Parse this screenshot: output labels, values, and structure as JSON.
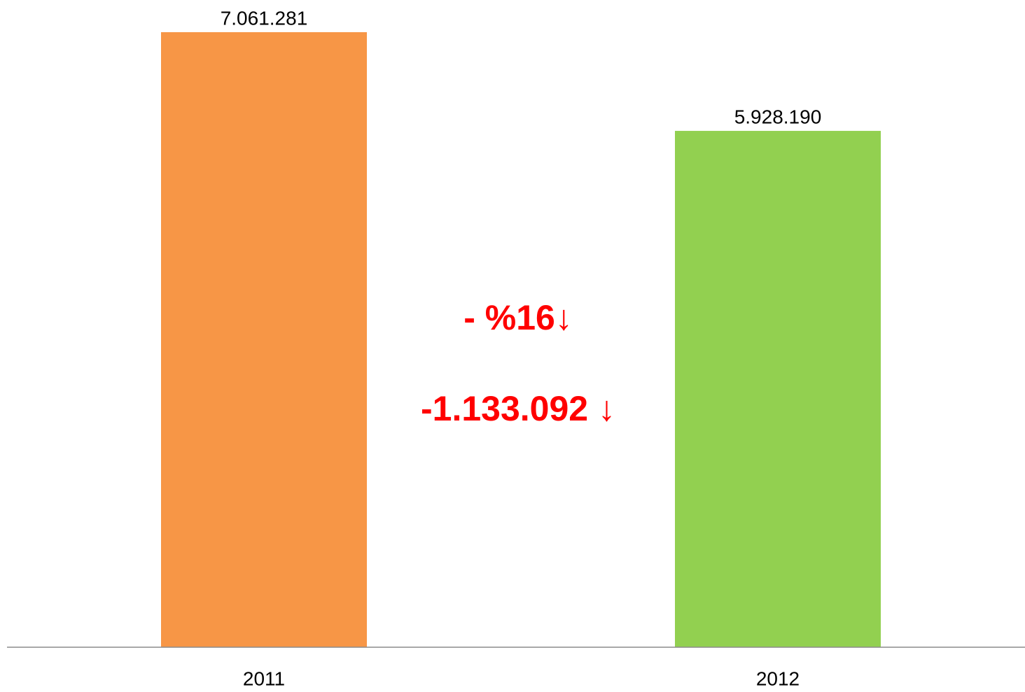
{
  "chart_data": {
    "type": "bar",
    "categories": [
      "2011",
      "2012"
    ],
    "values": [
      7061281,
      5928190
    ],
    "value_labels": [
      "7.061.281",
      "5.928.190"
    ],
    "colors": [
      "#f79646",
      "#92d050"
    ],
    "annotations": [
      "- %16↓",
      "-1.133.092 ↓"
    ]
  }
}
